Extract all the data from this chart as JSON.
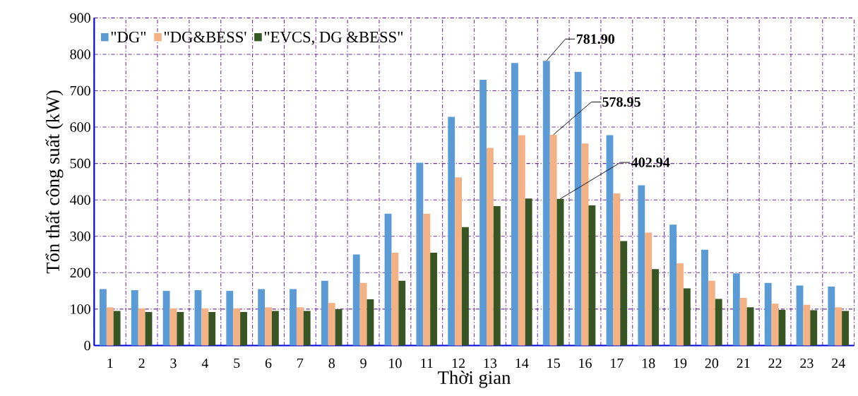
{
  "chart_data": {
    "type": "bar",
    "xlabel": "Thời gian",
    "ylabel": "Tổn thất công suất (kW)",
    "categories": [
      "1",
      "2",
      "3",
      "4",
      "5",
      "6",
      "7",
      "8",
      "9",
      "10",
      "11",
      "12",
      "13",
      "14",
      "15",
      "16",
      "17",
      "18",
      "19",
      "20",
      "21",
      "22",
      "23",
      "24"
    ],
    "series": [
      {
        "name": "\"DG\"",
        "color": "#5b9bd5",
        "values": [
          155,
          152,
          150,
          152,
          150,
          155,
          155,
          178,
          250,
          362,
          502,
          628,
          730,
          776,
          781.9,
          752,
          578,
          440,
          332,
          263,
          198,
          172,
          165,
          162
        ],
        "value_labels": [
          null,
          null,
          null,
          null,
          null,
          null,
          null,
          null,
          null,
          null,
          null,
          null,
          null,
          null,
          "781.90",
          null,
          null,
          null,
          null,
          null,
          null,
          null,
          null,
          null
        ]
      },
      {
        "name": "\"DG&BESS'",
        "color": "#f4b183",
        "values": [
          105,
          102,
          102,
          102,
          102,
          105,
          105,
          117,
          172,
          255,
          362,
          462,
          543,
          578,
          578.95,
          555,
          418,
          310,
          226,
          178,
          131,
          115,
          112,
          105
        ],
        "value_labels": [
          null,
          null,
          null,
          null,
          null,
          null,
          null,
          null,
          null,
          null,
          null,
          null,
          null,
          null,
          "578.95",
          null,
          null,
          null,
          null,
          null,
          null,
          null,
          null,
          null
        ]
      },
      {
        "name": "\"EVCS, DG &BESS\"",
        "color": "#375623",
        "values": [
          95,
          92,
          92,
          92,
          92,
          95,
          95,
          100,
          127,
          178,
          255,
          325,
          383,
          404,
          402.94,
          385,
          287,
          210,
          157,
          128,
          105,
          98,
          97,
          95
        ],
        "value_labels": [
          null,
          null,
          null,
          null,
          null,
          null,
          null,
          null,
          null,
          null,
          null,
          null,
          null,
          null,
          "402.94",
          null,
          null,
          null,
          null,
          null,
          null,
          null,
          null,
          null
        ]
      }
    ],
    "ylim": [
      0,
      900
    ],
    "yticks": [
      0,
      100,
      200,
      300,
      400,
      500,
      600,
      700,
      800,
      900
    ],
    "grid": true,
    "legend": "top left"
  }
}
